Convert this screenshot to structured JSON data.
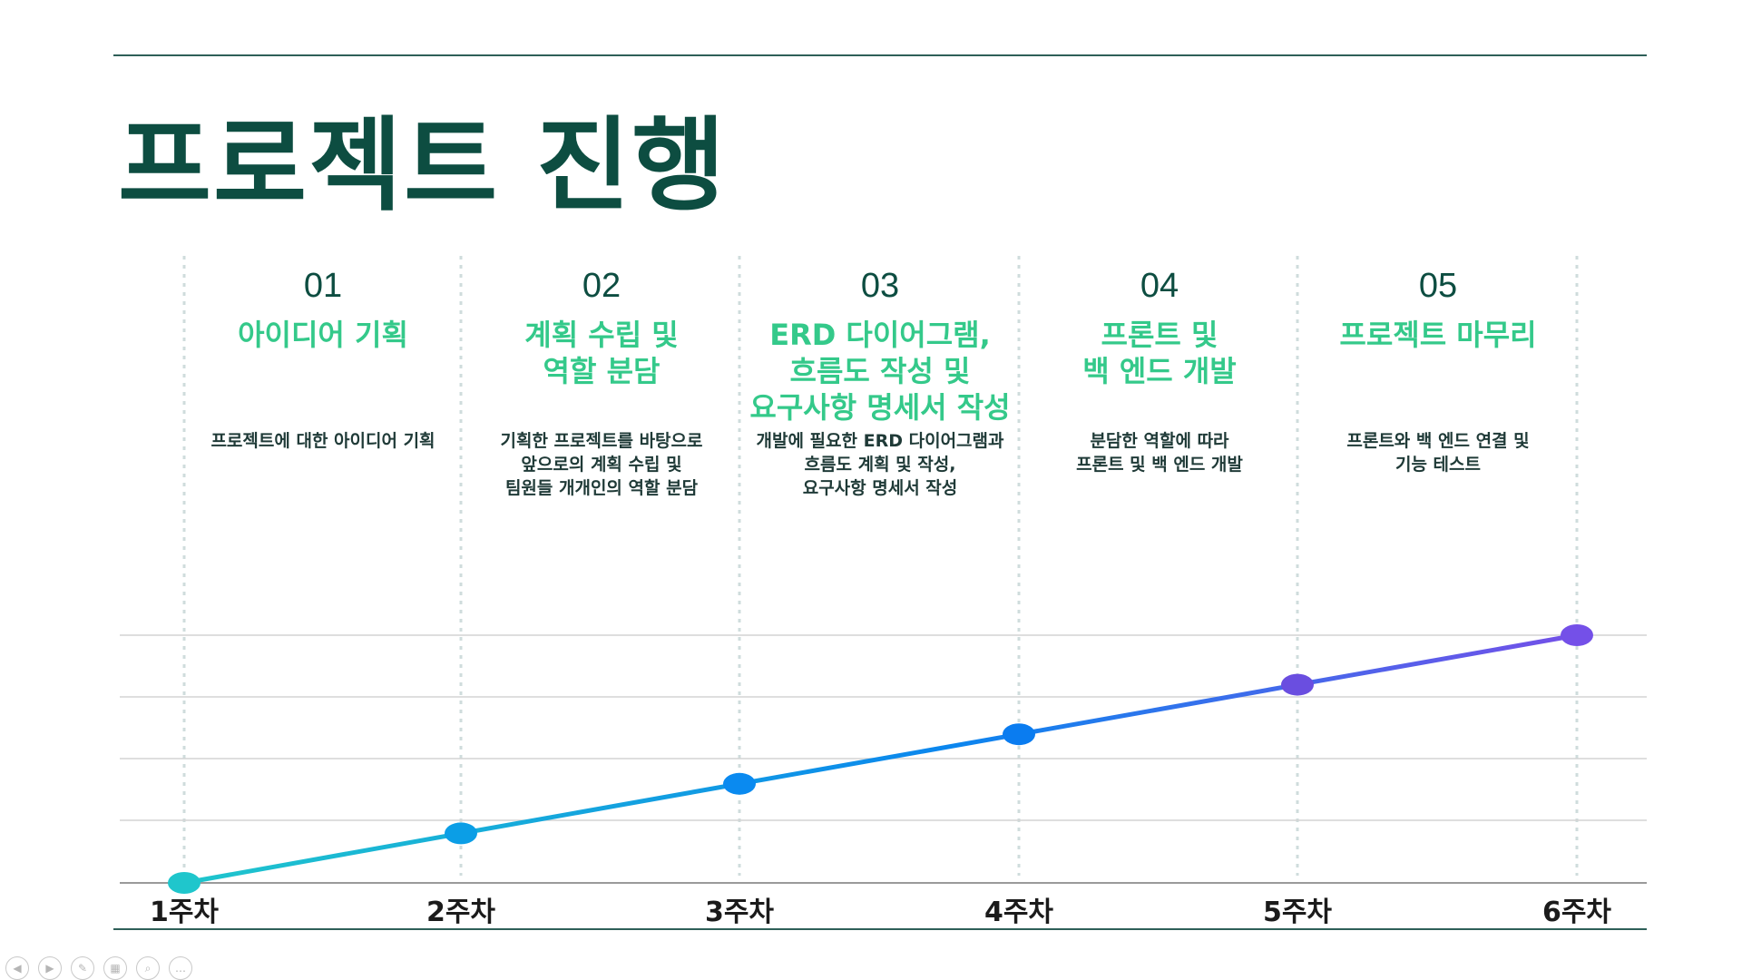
{
  "slide": {
    "title": "프로젝트 진행"
  },
  "phases": [
    {
      "num": "01",
      "name": [
        "아이디어 기획"
      ],
      "desc": [
        "프로젝트에 대한 아이디어 기획"
      ]
    },
    {
      "num": "02",
      "name": [
        "계획 수립 및",
        "역할 분담"
      ],
      "desc": [
        "기획한 프로젝트를 바탕으로",
        "앞으로의 계획 수립 및",
        "팀원들 개개인의 역할 분담"
      ]
    },
    {
      "num": "03",
      "name": [
        "ERD 다이어그램,",
        "흐름도 작성 및",
        "요구사항 명세서 작성"
      ],
      "desc": [
        "개발에 필요한 ERD 다이어그램과",
        "흐름도 계획 및 작성,",
        "요구사항 명세서 작성"
      ]
    },
    {
      "num": "04",
      "name": [
        "프론트 및",
        "백 엔드 개발"
      ],
      "desc": [
        "분담한 역할에 따라",
        "프론트 및 백 엔드 개발"
      ]
    },
    {
      "num": "05",
      "name": [
        "프로젝트 마무리"
      ],
      "desc": [
        "프론트와 백 엔드 연결 및",
        "기능 테스트"
      ]
    }
  ],
  "chart_data": {
    "type": "line",
    "categories": [
      "1주차",
      "2주차",
      "3주차",
      "4주차",
      "5주차",
      "6주차"
    ],
    "values": [
      0,
      1,
      2,
      3,
      4,
      5
    ],
    "ylim": [
      0,
      5
    ],
    "grid": true,
    "point_colors": [
      "#1fc6cc",
      "#0b9ee6",
      "#0a8af0",
      "#0a7cf0",
      "#6a4ee0",
      "#7450e8"
    ]
  },
  "toolbar": {
    "buttons": [
      {
        "icon": "prev-icon",
        "glyph": "◀"
      },
      {
        "icon": "next-icon",
        "glyph": "▶"
      },
      {
        "icon": "pen-icon",
        "glyph": "✎"
      },
      {
        "icon": "slides-icon",
        "glyph": "▦"
      },
      {
        "icon": "zoom-icon",
        "glyph": "⌕"
      },
      {
        "icon": "more-icon",
        "glyph": "…"
      }
    ]
  }
}
